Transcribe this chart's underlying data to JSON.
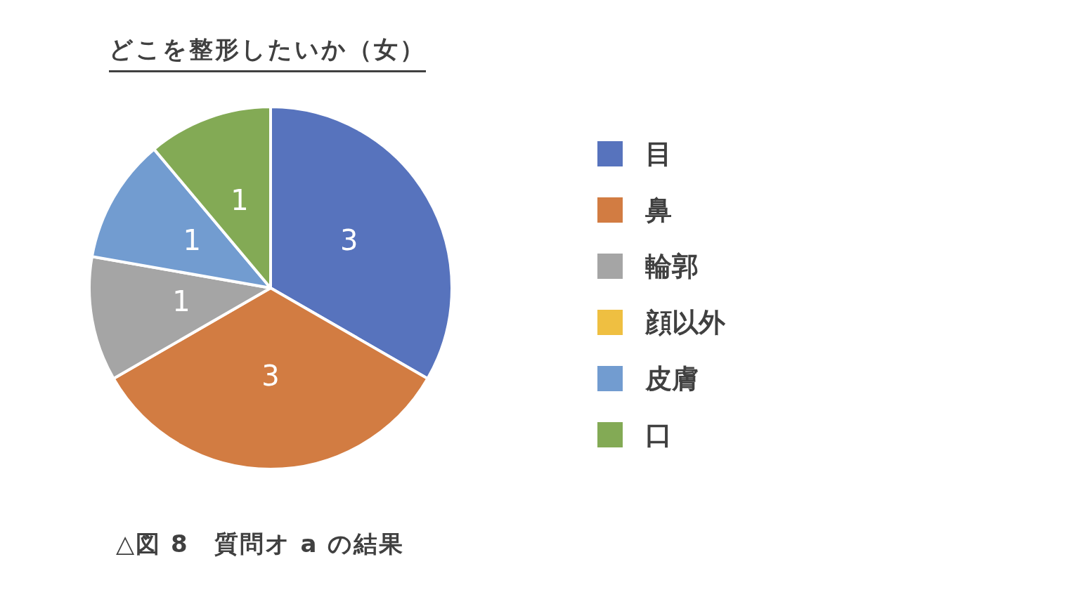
{
  "chart_data": {
    "type": "pie",
    "title": "どこを整形したいか（女）",
    "categories": [
      "目",
      "鼻",
      "輪郭",
      "顔以外",
      "皮膚",
      "口"
    ],
    "values": [
      3,
      3,
      1,
      0,
      1,
      1
    ],
    "colors": [
      "#5773bd",
      "#d27c42",
      "#a5a5a5",
      "#efbf41",
      "#729cd0",
      "#83aa55"
    ],
    "value_labels": [
      "3",
      "3",
      "1",
      null,
      "1",
      "1"
    ],
    "legend": "right",
    "annotations": [
      "△図 8　質問オ a の結果"
    ]
  }
}
